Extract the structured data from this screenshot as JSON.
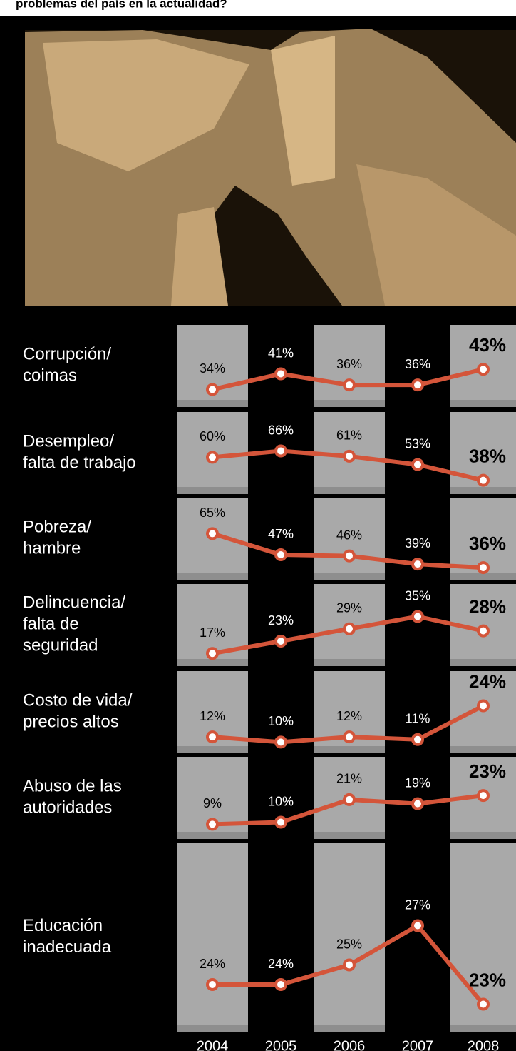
{
  "title": "problemas del país en la actualidad?",
  "categories": [
    "2004",
    "2005",
    "2006",
    "2007",
    "2008"
  ],
  "chart_data": [
    {
      "type": "line",
      "title": "Corrupción/\ncoimas",
      "color": "#d4553a",
      "values": [
        34,
        41,
        36,
        36,
        43
      ],
      "value_labels": [
        "34%",
        "41%",
        "36%",
        "36%",
        "43%"
      ],
      "ylim": [
        30,
        52
      ]
    },
    {
      "type": "line",
      "title": "Desempleo/\nfalta de trabajo",
      "color": "#d4553a",
      "values": [
        60,
        66,
        61,
        53,
        38
      ],
      "value_labels": [
        "60%",
        "66%",
        "61%",
        "53%",
        "38%"
      ],
      "ylim": [
        33,
        80
      ]
    },
    {
      "type": "line",
      "title": "Pobreza/\nhambre",
      "color": "#d4553a",
      "values": [
        65,
        47,
        46,
        39,
        36
      ],
      "value_labels": [
        "65%",
        "47%",
        "46%",
        "39%",
        "36%"
      ],
      "ylim": [
        33,
        75
      ]
    },
    {
      "type": "line",
      "title": "Delincuencia/\nfalta de\nseguridad",
      "color": "#d4553a",
      "values": [
        17,
        23,
        29,
        35,
        28
      ],
      "value_labels": [
        "17%",
        "23%",
        "29%",
        "35%",
        "28%"
      ],
      "ylim": [
        15,
        39
      ]
    },
    {
      "type": "line",
      "title": "Costo de vida/\nprecios altos",
      "color": "#d4553a",
      "values": [
        12,
        10,
        12,
        11,
        24
      ],
      "value_labels": [
        "12%",
        "10%",
        "12%",
        "11%",
        "24%"
      ],
      "ylim": [
        9,
        28
      ]
    },
    {
      "type": "line",
      "title": "Abuso de las\nautoridades",
      "color": "#d4553a",
      "values": [
        9,
        10,
        21,
        19,
        23
      ],
      "value_labels": [
        "9%",
        "10%",
        "21%",
        "19%",
        "23%"
      ],
      "ylim": [
        6,
        30
      ]
    },
    {
      "type": "line",
      "title": "Educación\ninadecuada",
      "color": "#d4553a",
      "values": [
        24,
        24,
        25,
        27,
        23
      ],
      "value_labels": [
        "24%",
        "24%",
        "25%",
        "27%",
        "23%"
      ],
      "ylim": [
        22,
        30
      ]
    }
  ]
}
